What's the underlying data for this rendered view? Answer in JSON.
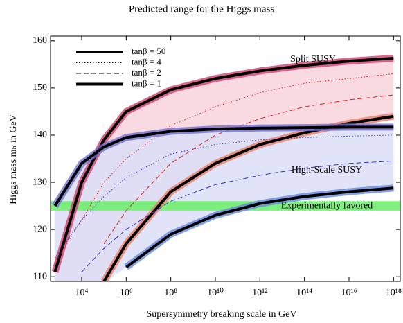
{
  "chart_data": {
    "type": "line",
    "title": "Predicted range for the Higgs mass",
    "x_label": "Supersymmetry breaking scale in GeV",
    "y_label": "Higgs mass mₕ in GeV",
    "log_x": true,
    "xlim": [
      400,
      2e+18
    ],
    "ylim": [
      109,
      161
    ],
    "xticks": [
      {
        "value": 10000.0,
        "label": "10⁴"
      },
      {
        "value": 1000000.0,
        "label": "10⁶"
      },
      {
        "value": 100000000.0,
        "label": "10⁸"
      },
      {
        "value": 10000000000.0,
        "label": "10¹⁰"
      },
      {
        "value": 1000000000000.0,
        "label": "10¹²"
      },
      {
        "value": 100000000000000.0,
        "label": "10¹⁴"
      },
      {
        "value": 1e+16,
        "label": "10¹⁶"
      },
      {
        "value": 1e+18,
        "label": "10¹⁸"
      }
    ],
    "yticks": [
      110,
      120,
      130,
      140,
      150,
      160
    ],
    "x": [
      631,
      10000.0,
      100000.0,
      1000000.0,
      100000000.0,
      10000000000.0,
      1000000000000.0,
      100000000000000.0,
      1e+16,
      1e+18
    ],
    "legend": [
      {
        "label": "tanβ = 50",
        "dash": "thick"
      },
      {
        "label": "tanβ = 4",
        "dash": "dotted"
      },
      {
        "label": "tanβ = 2",
        "dash": "dashed"
      },
      {
        "label": "tanβ = 1",
        "dash": "thick"
      }
    ],
    "groups": [
      {
        "name": "Split SUSY",
        "color": "#e02020",
        "band_color": "#f7d3da",
        "series": [
          {
            "color": "#d04070",
            "values": [
              111,
              130,
              139,
              145,
              149.6,
              152,
              153.6,
              154.8,
              155.7,
              156.3
            ]
          },
          {
            "color": "#e02020",
            "values": [
              113,
              122,
              130,
              135,
              142,
              146,
              149,
              151,
              152,
              153
            ]
          },
          {
            "color": "#e02020",
            "values": [
              null,
              null,
              117,
              124,
              134,
              140,
              143.5,
              146,
              147.5,
              148.5
            ]
          },
          {
            "color": "#e8806a",
            "values": [
              null,
              null,
              109,
              117,
              128,
              134,
              138,
              140.5,
              142.5,
              144
            ]
          }
        ]
      },
      {
        "name": "High-Scale SUSY",
        "color": "#3030d0",
        "band_color": "#dcdef8",
        "series": [
          {
            "color": "#7070d0",
            "values": [
              125,
              134,
              137.5,
              139.5,
              140.8,
              141.3,
              141.5,
              141.6,
              141.7,
              141.7
            ]
          },
          {
            "color": "#3030d0",
            "values": [
              114,
              122,
              127,
              131,
              136,
              138,
              139,
              139.5,
              139.8,
              140
            ]
          },
          {
            "color": "#3030d0",
            "values": [
              null,
              111,
              116,
              120,
              126,
              129.5,
              131.5,
              133,
              134,
              134.5
            ]
          },
          {
            "color": "#6688dd",
            "values": [
              null,
              null,
              null,
              112,
              119,
              123,
              125.5,
              127,
              128,
              128.8
            ]
          }
        ]
      }
    ],
    "favored": {
      "label": "Experimentally favored",
      "range": [
        124,
        126
      ],
      "color": "#70ee70",
      "text_color": "#2a9a2a"
    }
  }
}
